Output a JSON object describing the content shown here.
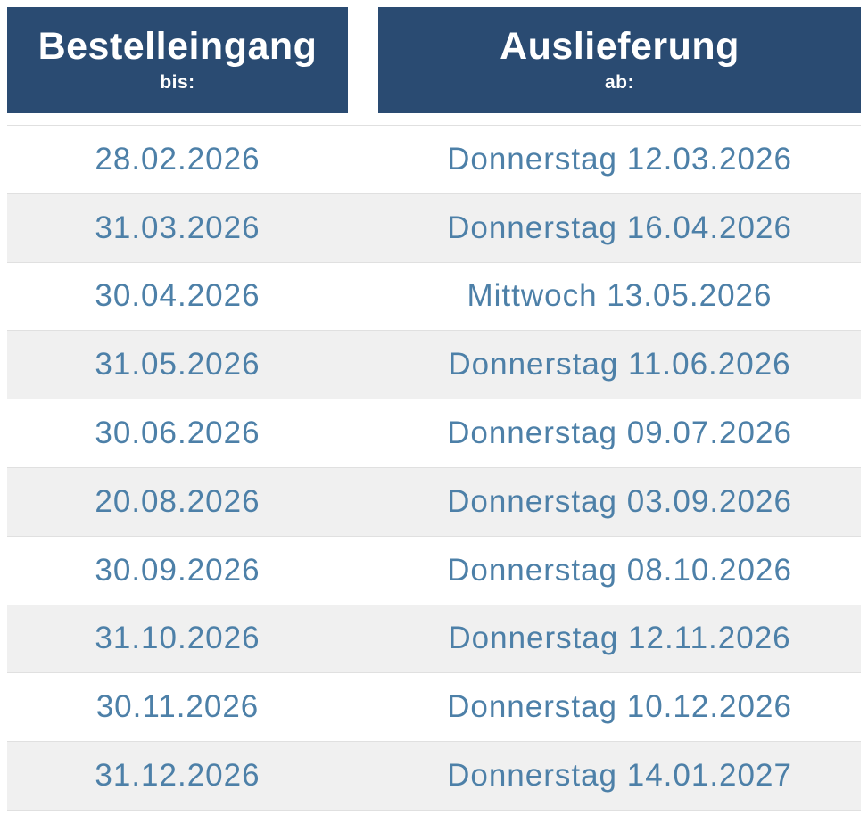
{
  "table": {
    "columns": [
      {
        "title": "Bestelleingang",
        "subtitle": "bis:"
      },
      {
        "title": "Auslieferung",
        "subtitle": "ab:"
      }
    ],
    "rows": [
      {
        "order_until": "28.02.2026",
        "delivery_from": "Donnerstag 12.03.2026"
      },
      {
        "order_until": "31.03.2026",
        "delivery_from": "Donnerstag 16.04.2026"
      },
      {
        "order_until": "30.04.2026",
        "delivery_from": "Mittwoch 13.05.2026"
      },
      {
        "order_until": "31.05.2026",
        "delivery_from": "Donnerstag 11.06.2026"
      },
      {
        "order_until": "30.06.2026",
        "delivery_from": "Donnerstag 09.07.2026"
      },
      {
        "order_until": "20.08.2026",
        "delivery_from": "Donnerstag 03.09.2026"
      },
      {
        "order_until": "30.09.2026",
        "delivery_from": "Donnerstag 08.10.2026"
      },
      {
        "order_until": "31.10.2026",
        "delivery_from": "Donnerstag 12.11.2026"
      },
      {
        "order_until": "30.11.2026",
        "delivery_from": "Donnerstag 10.12.2026"
      },
      {
        "order_until": "31.12.2026",
        "delivery_from": "Donnerstag 14.01.2027"
      }
    ]
  },
  "colors": {
    "header_bg": "#2a4b72",
    "header_text": "#ffffff",
    "row_text": "#4d80a8",
    "stripe_bg": "#f0f0f0",
    "row_border": "#e0e0e0",
    "page_bg": "#ffffff"
  }
}
